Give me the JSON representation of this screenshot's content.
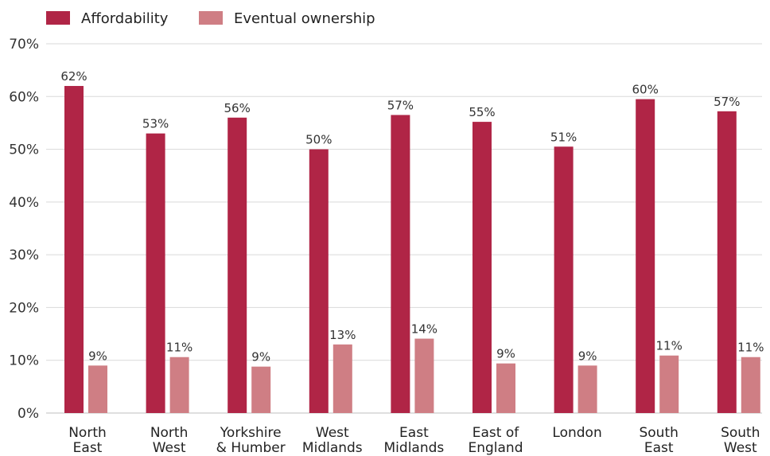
{
  "chart_data": {
    "type": "bar",
    "categories": [
      [
        "North",
        "East"
      ],
      [
        "North",
        "West"
      ],
      [
        "Yorkshire",
        "& Humber"
      ],
      [
        "West",
        "Midlands"
      ],
      [
        "East",
        "Midlands"
      ],
      [
        "East of",
        "England"
      ],
      [
        "London"
      ],
      [
        "South",
        "East"
      ],
      [
        "South",
        "West"
      ]
    ],
    "series": [
      {
        "name": "Affordability",
        "color": "#b02546",
        "values": [
          62,
          53,
          56,
          50,
          56.5,
          55.2,
          50.5,
          59.5,
          57.2
        ],
        "labels": [
          "62%",
          "53%",
          "56%",
          "50%",
          "57%",
          "55%",
          "51%",
          "60%",
          "57%"
        ]
      },
      {
        "name": "Eventual ownership",
        "color": "#cf7e84",
        "values": [
          9,
          10.6,
          8.8,
          13,
          14.1,
          9.4,
          9,
          10.9,
          10.6
        ],
        "labels": [
          "9%",
          "11%",
          "9%",
          "13%",
          "14%",
          "9%",
          "9%",
          "11%",
          "11%"
        ]
      }
    ],
    "ylim": [
      0,
      70
    ],
    "yticks": [
      "0%",
      "10%",
      "20%",
      "30%",
      "40%",
      "50%",
      "60%",
      "70%"
    ],
    "ytick_values": [
      0,
      10,
      20,
      30,
      40,
      50,
      60,
      70
    ],
    "legend": "top-left",
    "grid": true
  }
}
